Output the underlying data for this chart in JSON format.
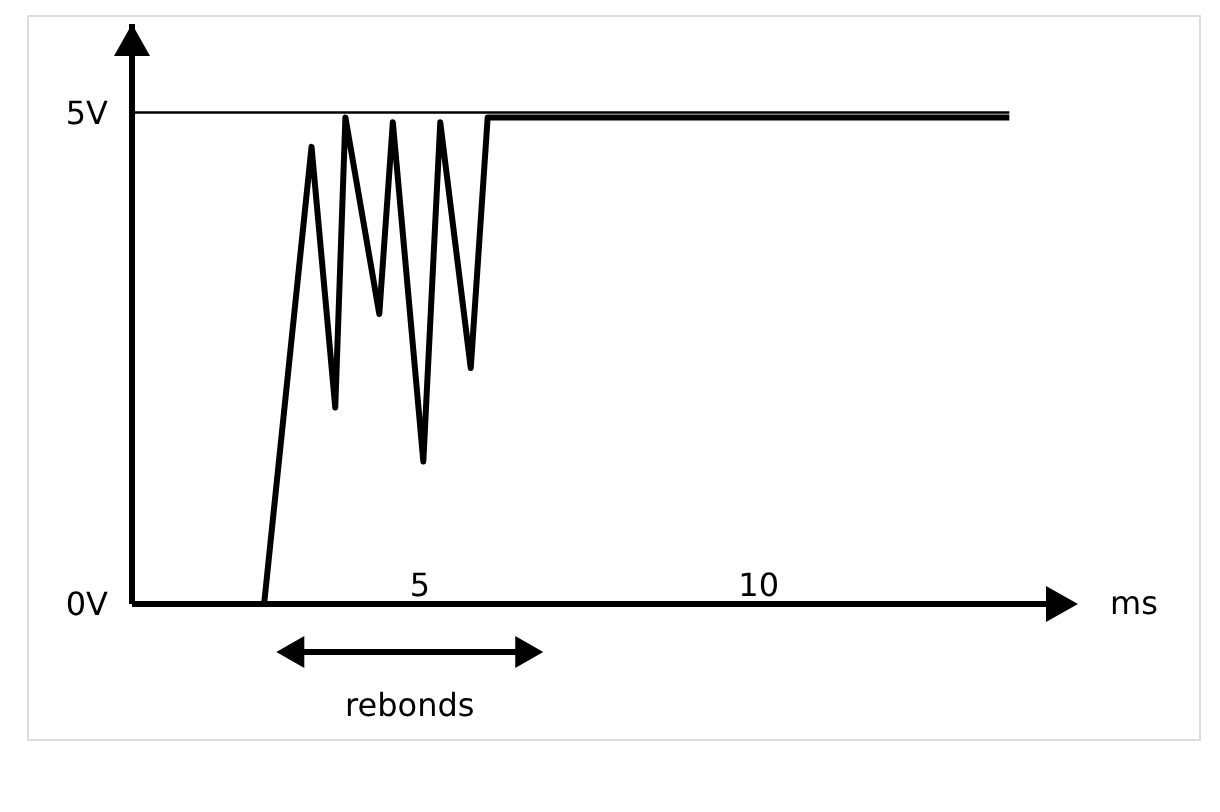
{
  "chart_data": {
    "type": "line",
    "xlabel": "ms",
    "x": [
      2.7,
      3.4,
      3.75,
      3.9,
      4.4,
      4.6,
      5.05,
      5.3,
      5.75,
      6.0,
      13.7
    ],
    "series": [
      {
        "color": "#000000",
        "values": [
          0,
          4.65,
          2,
          4.95,
          2.95,
          4.9,
          1.45,
          4.9,
          2.4,
          4.95,
          4.95
        ]
      }
    ],
    "xlim": [
      0.75,
      14.3
    ],
    "xticks": [
      5,
      10
    ],
    "ylim": [
      0,
      5.9
    ],
    "yticks": [
      {
        "value": 0,
        "label": "0V"
      },
      {
        "value": 5,
        "label": "5V"
      }
    ],
    "ref_lines": [
      {
        "axis": "y",
        "value": 5,
        "color": "#000000"
      }
    ],
    "annotations": [
      "rebonds"
    ],
    "grid": false,
    "marker": "none",
    "line_style": "solid"
  }
}
